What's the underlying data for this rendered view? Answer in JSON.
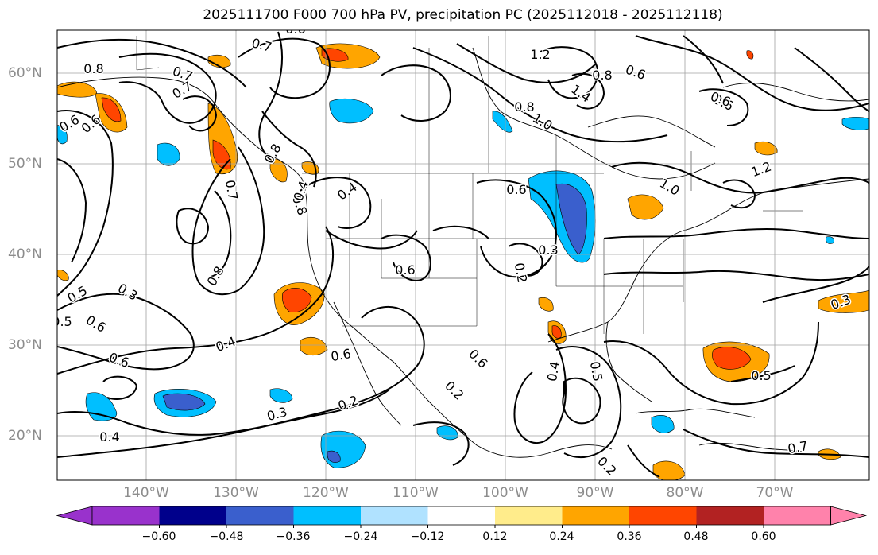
{
  "title": "2025111700 F000 700 hPa PV, precipitation PC (2025112018 - 2025112118)",
  "lat_labels": [
    "60°N",
    "50°N",
    "40°N",
    "30°N",
    "20°N"
  ],
  "lon_labels": [
    "140°W",
    "130°W",
    "120°W",
    "110°W",
    "100°W",
    "90°W",
    "80°W",
    "70°W"
  ],
  "map_extent": {
    "lon": [
      -149,
      -61
    ],
    "lat": [
      15,
      65
    ]
  },
  "contour_labels": [
    "0.7",
    "0.8",
    "0.7",
    "0.6",
    "0.8",
    "1.2",
    "1.4",
    "0.8",
    "0.6",
    "0.6",
    "0.8",
    "1.0",
    "1.0",
    "1.2",
    "0.6",
    "0.6",
    "0.8",
    "0.4",
    "0.7",
    "0.6",
    "0.5",
    "0.3",
    "0.6",
    "0.8",
    "0.6",
    "0.2",
    "0.3",
    "0.6",
    "0.3",
    "0.4",
    "0.6",
    "0.4",
    "0.6",
    "0.2",
    "0.3",
    "0.2",
    "0.4",
    "0.5",
    "0.5",
    "0.4",
    "0.2",
    "0.7",
    "0.5",
    "0.6",
    "0.7"
  ],
  "colorbar": {
    "ticks": [
      "−0.60",
      "−0.48",
      "−0.36",
      "−0.24",
      "−0.12",
      "0.12",
      "0.24",
      "0.36",
      "0.48",
      "0.60"
    ],
    "colors": [
      "#9932cc",
      "#00008b",
      "#3a5fcd",
      "#00bfff",
      "#b0e2ff",
      "#ffffff",
      "#ffec8b",
      "#ffa500",
      "#ff4500",
      "#b22222",
      "#ff82ab"
    ]
  }
}
